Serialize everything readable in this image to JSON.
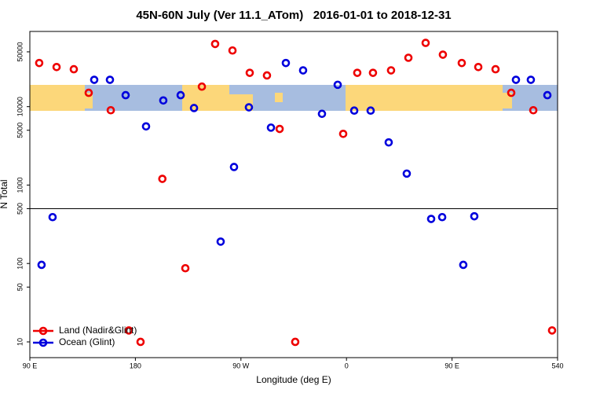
{
  "chart_data": {
    "type": "scatter",
    "title": "45N-60N July (Ver 11.1_ATom)   2016-01-01 to 2018-12-31",
    "xlabel": "Longitude (deg E)",
    "ylabel": "N Total",
    "xlim": [
      90,
      540
    ],
    "xticks": [
      {
        "value": 90,
        "label": "90 E"
      },
      180,
      {
        "value": 270,
        "label": "90 W"
      },
      {
        "value": 360,
        "label": "0"
      },
      {
        "value": 450,
        "label": "90 E"
      },
      540
    ],
    "ylim": [
      6.3,
      91000
    ],
    "log_y": true,
    "yticks": [
      10,
      50,
      100,
      500,
      1000,
      5000,
      10000,
      50000
    ],
    "hline": 500,
    "legend": "lower left",
    "series": [
      {
        "name": "Land (Nadir&Glint)",
        "color": "#ee0000",
        "x": [
          98,
          112.8,
          127.5,
          140.2,
          159,
          174.4,
          184.4,
          203,
          222.6,
          236.7,
          248,
          262.8,
          277.5,
          292.2,
          303,
          316.3,
          357.2,
          369.2,
          382.6,
          398,
          412.8,
          427.5,
          442.2,
          458.3,
          472.4,
          487.1,
          500.5,
          519.3,
          535.3
        ],
        "values": [
          36000,
          32000,
          30000,
          15000,
          9000,
          14,
          10,
          1200,
          87,
          18000,
          63000,
          52000,
          27000,
          25000,
          5200,
          10,
          4500,
          27000,
          27000,
          29000,
          42000,
          65000,
          46000,
          36000,
          32000,
          30000,
          15000,
          9000,
          14
        ]
      },
      {
        "name": "Ocean (Glint)",
        "color": "#0000dd",
        "x": [
          100,
          109.4,
          144.9,
          158.3,
          171.7,
          189.1,
          203.8,
          218.6,
          230,
          252.7,
          264.1,
          276.8,
          295.6,
          308.3,
          323,
          339.1,
          352.5,
          366.6,
          380.6,
          396,
          411.4,
          432.2,
          441.6,
          459.6,
          469,
          504.5,
          517.2,
          531.3
        ],
        "values": [
          96,
          390,
          22000,
          22000,
          14000,
          5600,
          12000,
          14000,
          9600,
          190,
          1700,
          9800,
          5400,
          36000,
          29000,
          8100,
          19000,
          8900,
          8900,
          3500,
          1400,
          370,
          390,
          96,
          400,
          22000,
          22000,
          14000
        ]
      }
    ]
  }
}
